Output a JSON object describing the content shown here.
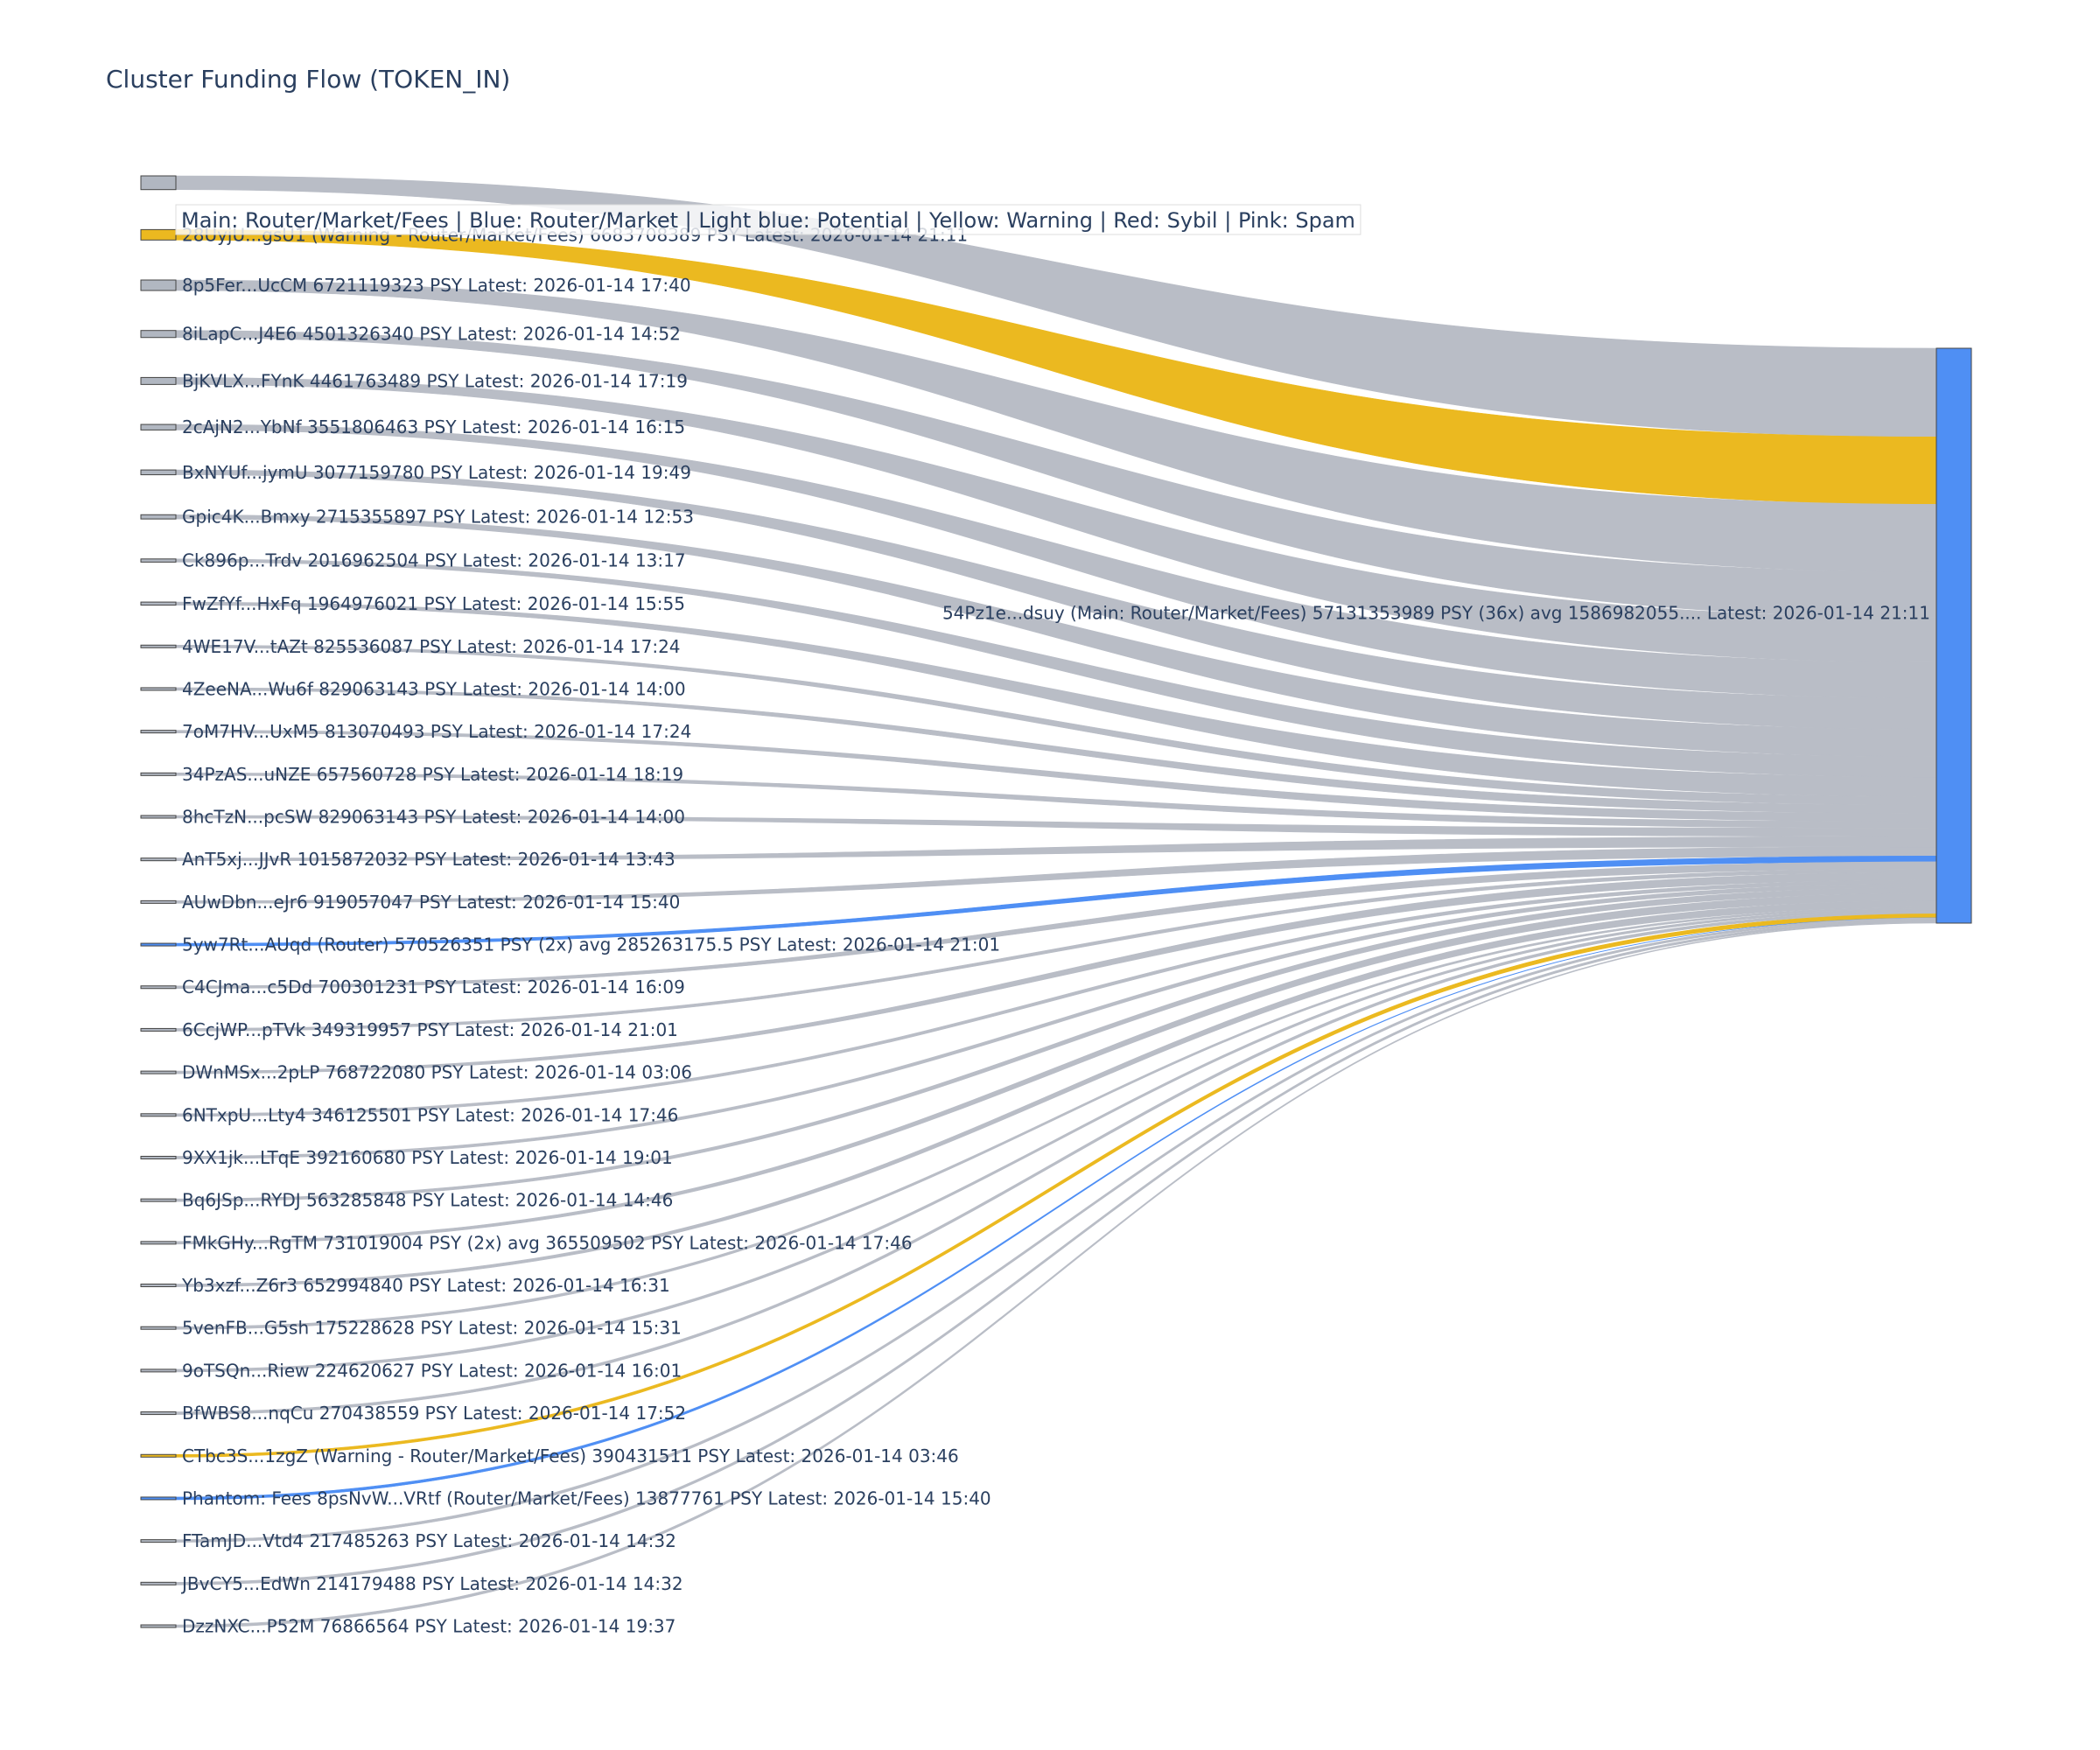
{
  "chart_data": {
    "type": "sankey",
    "title": "Cluster Funding Flow (TOKEN_IN)",
    "legend_text": "Main: Router/Market/Fees  |  Blue: Router/Market | Light blue: Potential | Yellow: Warning | Red: Sybil | Pink: Spam",
    "colors": {
      "gray_node": "#b1b7c1",
      "gray_link": "#b9bdc6",
      "yellow": "#ebb920",
      "blue": "#4f8ff4",
      "target_node": "#4f8ff4"
    },
    "target": {
      "label": "54Pz1e...dsuy (Main: Router/Market/Fees) 57131353989 PSY (36x) avg 1586982055.... Latest: 2026-01-14 21:11",
      "value": 57131353989
    },
    "sources": [
      {
        "label": "",
        "value": 8800000000,
        "color": "gray"
      },
      {
        "label": "28UyjU...gsU1 (Warning - Router/Market/Fees) 6683708389 PSY Latest: 2026-01-14 21:11",
        "value": 6683708389,
        "color": "yellow"
      },
      {
        "label": "8p5Fer...UcCM 6721119323 PSY Latest: 2026-01-14 17:40",
        "value": 6721119323,
        "color": "gray"
      },
      {
        "label": "8iLapC...J4E6 4501326340 PSY Latest: 2026-01-14 14:52",
        "value": 4501326340,
        "color": "gray"
      },
      {
        "label": "BjKVLX...FYnK 4461763489 PSY Latest: 2026-01-14 17:19",
        "value": 4461763489,
        "color": "gray"
      },
      {
        "label": "2cAjN2...YbNf 3551806463 PSY Latest: 2026-01-14 16:15",
        "value": 3551806463,
        "color": "gray"
      },
      {
        "label": "BxNYUf...jymU 3077159780 PSY Latest: 2026-01-14 19:49",
        "value": 3077159780,
        "color": "gray"
      },
      {
        "label": "Gpic4K...Bmxy 2715355897 PSY Latest: 2026-01-14 12:53",
        "value": 2715355897,
        "color": "gray"
      },
      {
        "label": "Ck896p...Trdv 2016962504 PSY Latest: 2026-01-14 13:17",
        "value": 2016962504,
        "color": "gray"
      },
      {
        "label": "FwZfYf...HxFq 1964976021 PSY Latest: 2026-01-14 15:55",
        "value": 1964976021,
        "color": "gray"
      },
      {
        "label": "4WE17V...tAZt 825536087 PSY Latest: 2026-01-14 17:24",
        "value": 825536087,
        "color": "gray"
      },
      {
        "label": "4ZeeNA...Wu6f 829063143 PSY Latest: 2026-01-14 14:00",
        "value": 829063143,
        "color": "gray"
      },
      {
        "label": "7oM7HV...UxM5 813070493 PSY Latest: 2026-01-14 17:24",
        "value": 813070493,
        "color": "gray"
      },
      {
        "label": "34PzAS...uNZE 657560728 PSY Latest: 2026-01-14 18:19",
        "value": 657560728,
        "color": "gray"
      },
      {
        "label": "8hcTzN...pcSW 829063143 PSY Latest: 2026-01-14 14:00",
        "value": 829063143,
        "color": "gray"
      },
      {
        "label": "AnT5xj...JJvR 1015872032 PSY Latest: 2026-01-14 13:43",
        "value": 1015872032,
        "color": "gray"
      },
      {
        "label": "AUwDbn...eJr6 919057047 PSY Latest: 2026-01-14 15:40",
        "value": 919057047,
        "color": "gray"
      },
      {
        "label": "5yw7Rt...AUqd (Router) 570526351 PSY (2x) avg 285263175.5 PSY Latest: 2026-01-14 21:01",
        "value": 570526351,
        "color": "blue"
      },
      {
        "label": "C4CJma...c5Dd 700301231 PSY Latest: 2026-01-14 16:09",
        "value": 700301231,
        "color": "gray"
      },
      {
        "label": "6CcjWP...pTVk 349319957 PSY Latest: 2026-01-14 21:01",
        "value": 349319957,
        "color": "gray"
      },
      {
        "label": "DWnMSx...2pLP 768722080 PSY Latest: 2026-01-14 03:06",
        "value": 768722080,
        "color": "gray"
      },
      {
        "label": "6NTxpU...Lty4 346125501 PSY Latest: 2026-01-14 17:46",
        "value": 346125501,
        "color": "gray"
      },
      {
        "label": "9XX1jk...LTqE 392160680 PSY Latest: 2026-01-14 19:01",
        "value": 392160680,
        "color": "gray"
      },
      {
        "label": "Bq6JSp...RYDJ 563285848 PSY Latest: 2026-01-14 14:46",
        "value": 563285848,
        "color": "gray"
      },
      {
        "label": "FMkGHy...RgTM 731019004 PSY (2x) avg 365509502 PSY Latest: 2026-01-14 17:46",
        "value": 731019004,
        "color": "gray"
      },
      {
        "label": "Yb3xzf...Z6r3 652994840 PSY Latest: 2026-01-14 16:31",
        "value": 652994840,
        "color": "gray"
      },
      {
        "label": "5venFB...G5sh 175228628 PSY Latest: 2026-01-14 15:31",
        "value": 175228628,
        "color": "gray"
      },
      {
        "label": "9oTSQn...Riew 224620627 PSY Latest: 2026-01-14 16:01",
        "value": 224620627,
        "color": "gray"
      },
      {
        "label": "BfWBS8...nqCu 270438559 PSY Latest: 2026-01-14 17:52",
        "value": 270438559,
        "color": "gray"
      },
      {
        "label": "CTbc3S...1zgZ (Warning - Router/Market/Fees) 390431511 PSY Latest: 2026-01-14 03:46",
        "value": 390431511,
        "color": "yellow"
      },
      {
        "label": "Phantom: Fees 8psNvW...VRtf (Router/Market/Fees) 13877761 PSY Latest: 2026-01-14 15:40",
        "value": 13877761,
        "color": "blue"
      },
      {
        "label": "FTamJD...Vtd4 217485263 PSY Latest: 2026-01-14 14:32",
        "value": 217485263,
        "color": "gray"
      },
      {
        "label": "JBvCY5...EdWn 214179488 PSY Latest: 2026-01-14 14:32",
        "value": 214179488,
        "color": "gray"
      },
      {
        "label": "DzzNXC...P52M 76866564 PSY Latest: 2026-01-14 19:37",
        "value": 76866564,
        "color": "gray"
      }
    ]
  }
}
